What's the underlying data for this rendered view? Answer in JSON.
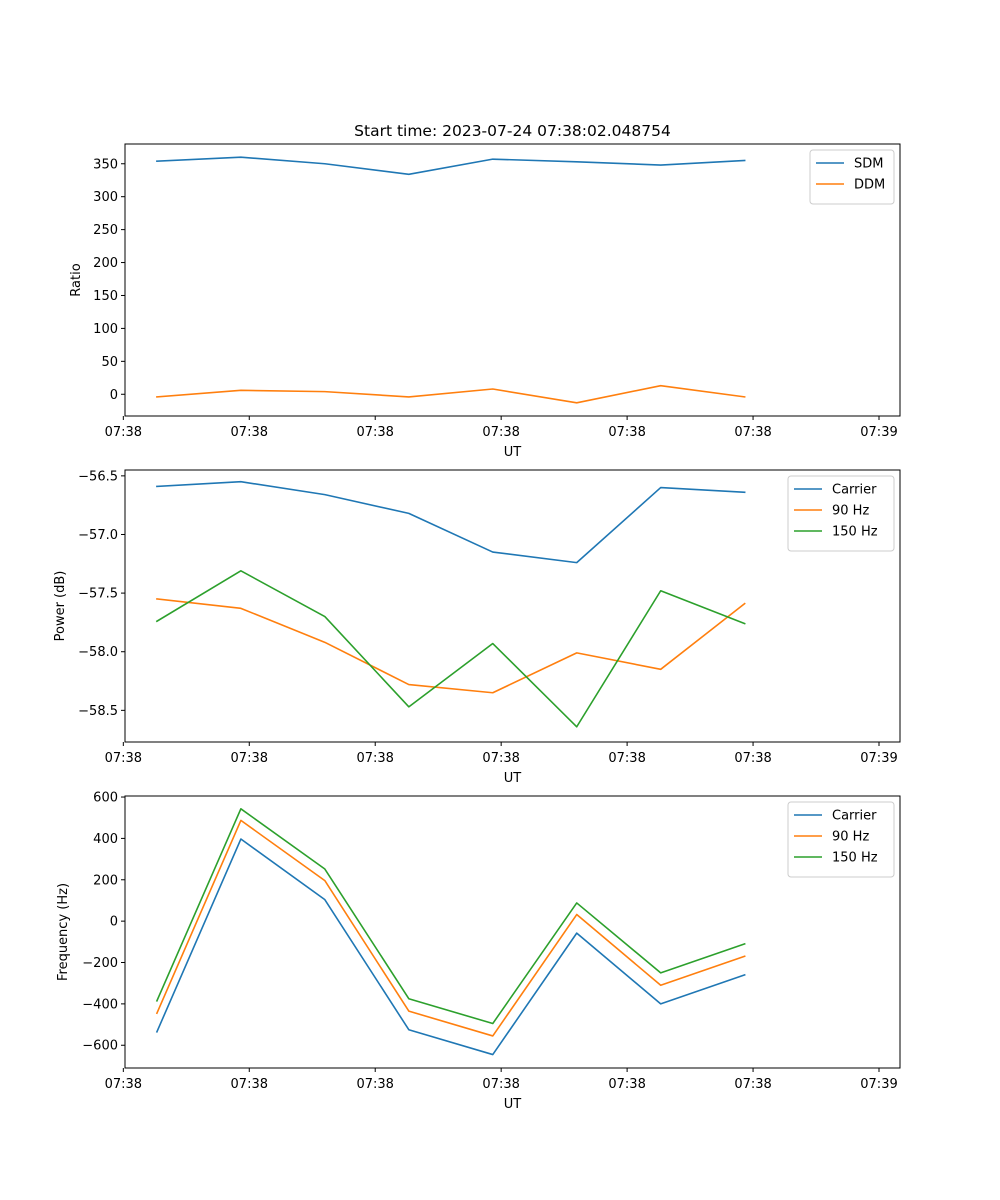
{
  "chart_data": [
    {
      "type": "line",
      "title": "Start time: 2023-07-24 07:38:02.048754",
      "xlabel": "UT",
      "ylabel": "Ratio",
      "x": [
        1,
        2,
        3,
        4,
        5,
        6,
        7,
        8
      ],
      "xlim": [
        0.62,
        9.85
      ],
      "x_ticks": [
        0.6,
        2.1,
        3.6,
        5.1,
        6.6,
        8.1,
        9.6
      ],
      "x_tick_labels": [
        "07:38",
        "07:38",
        "07:38",
        "07:38",
        "07:38",
        "07:38",
        "07:39"
      ],
      "ylim": [
        -33,
        380
      ],
      "y_ticks": [
        0,
        50,
        100,
        150,
        200,
        250,
        300,
        350
      ],
      "legend_position": "top-right",
      "series": [
        {
          "name": "SDM",
          "color": "#1f77b4",
          "values": [
            354,
            360,
            350,
            334,
            357,
            353,
            348,
            355
          ]
        },
        {
          "name": "DDM",
          "color": "#ff7f0e",
          "values": [
            -4,
            6,
            4,
            -4,
            8,
            -13,
            13,
            -4
          ]
        }
      ]
    },
    {
      "type": "line",
      "title": "",
      "xlabel": "UT",
      "ylabel": "Power (dB)",
      "x": [
        1,
        2,
        3,
        4,
        5,
        6,
        7,
        8
      ],
      "xlim": [
        0.62,
        9.85
      ],
      "x_ticks": [
        0.6,
        2.1,
        3.6,
        5.1,
        6.6,
        8.1,
        9.6
      ],
      "x_tick_labels": [
        "07:38",
        "07:38",
        "07:38",
        "07:38",
        "07:38",
        "07:38",
        "07:39"
      ],
      "ylim": [
        -58.77,
        -56.45
      ],
      "y_ticks": [
        -58.5,
        -58.0,
        -57.5,
        -57.0,
        -56.5
      ],
      "y_tick_labels": [
        "−58.5",
        "−58.0",
        "−57.5",
        "−57.0",
        "−56.5"
      ],
      "legend_position": "top-right",
      "series": [
        {
          "name": "Carrier",
          "color": "#1f77b4",
          "values": [
            -56.59,
            -56.55,
            -56.66,
            -56.82,
            -57.15,
            -57.24,
            -56.6,
            -56.64
          ]
        },
        {
          "name": "90 Hz",
          "color": "#ff7f0e",
          "values": [
            -57.55,
            -57.63,
            -57.92,
            -58.28,
            -58.35,
            -58.01,
            -58.15,
            -57.59
          ]
        },
        {
          "name": "150 Hz",
          "color": "#2ca02c",
          "values": [
            -57.74,
            -57.31,
            -57.7,
            -58.47,
            -57.93,
            -58.64,
            -57.48,
            -57.76
          ]
        }
      ]
    },
    {
      "type": "line",
      "title": "",
      "xlabel": "UT",
      "ylabel": "Frequency (Hz)",
      "x": [
        1,
        2,
        3,
        4,
        5,
        6,
        7,
        8
      ],
      "xlim": [
        0.62,
        9.85
      ],
      "x_ticks": [
        0.6,
        2.1,
        3.6,
        5.1,
        6.6,
        8.1,
        9.6
      ],
      "x_tick_labels": [
        "07:38",
        "07:38",
        "07:38",
        "07:38",
        "07:38",
        "07:38",
        "07:39"
      ],
      "ylim": [
        -710,
        605
      ],
      "y_ticks": [
        -600,
        -400,
        -200,
        0,
        200,
        400,
        600
      ],
      "y_tick_labels": [
        "−600",
        "−400",
        "−200",
        "0",
        "200",
        "400",
        "600"
      ],
      "legend_position": "top-right",
      "series": [
        {
          "name": "Carrier",
          "color": "#1f77b4",
          "values": [
            -535,
            397,
            104,
            -525,
            -645,
            -58,
            -400,
            -260
          ]
        },
        {
          "name": "90 Hz",
          "color": "#ff7f0e",
          "values": [
            -445,
            487,
            196,
            -435,
            -555,
            32,
            -310,
            -170
          ]
        },
        {
          "name": "150 Hz",
          "color": "#2ca02c",
          "values": [
            -385,
            543,
            252,
            -375,
            -495,
            88,
            -250,
            -110
          ]
        }
      ]
    }
  ]
}
